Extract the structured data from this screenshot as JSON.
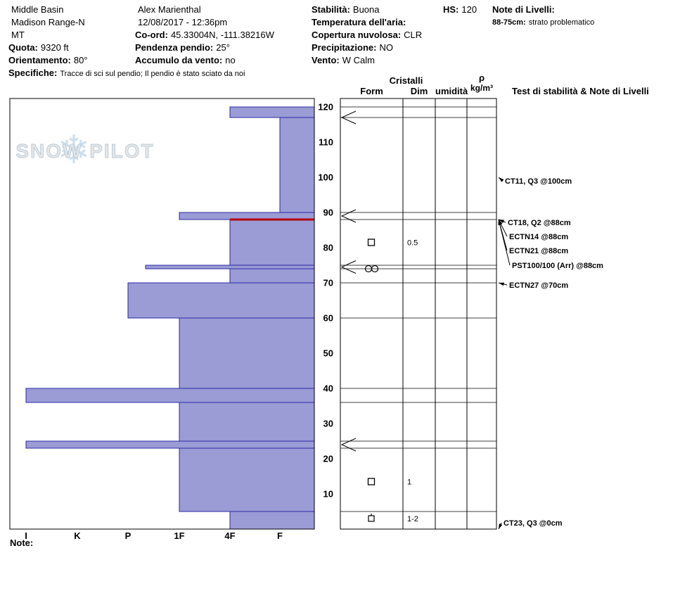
{
  "header": {
    "columns": [
      {
        "rows": [
          {
            "value": "Middle Basin"
          },
          {
            "value": "Madison Range-N"
          },
          {
            "value": "MT"
          },
          {
            "label": "Quota:",
            "value": "9320 ft"
          },
          {
            "label": "Orientamento:",
            "value": "80°"
          },
          {
            "label": "Specifiche:",
            "value": "Tracce di sci sul pendio;  Il pendio è stato sciato da noi",
            "small_value": true
          }
        ]
      },
      {
        "rows": [
          {
            "value": "Alex Marienthal"
          },
          {
            "value": "12/08/2017 - 12:36pm"
          },
          {
            "label": "Co-ord:",
            "value": "45.33004N, -111.38216W"
          },
          {
            "label": "Pendenza pendio:",
            "value": "25°"
          },
          {
            "label": "Accumulo da vento:",
            "value": "no"
          }
        ]
      },
      {
        "rows": [
          {
            "label": "Stabilità:",
            "value": "Buona"
          },
          {
            "label": "Temperatura dell'aria:",
            "value": ""
          },
          {
            "label": "Copertura nuvolosa:",
            "value": "CLR"
          },
          {
            "label": "Precipitazione:",
            "value": "NO"
          },
          {
            "label": "Vento:",
            "value": "W Calm"
          }
        ]
      },
      {
        "rows": [
          {
            "label": "HS:",
            "value": "120"
          }
        ]
      },
      {
        "rows": [
          {
            "label": "Note di Livelli:",
            "value": ""
          },
          {
            "label": "88-75cm:",
            "value": "strato problematico",
            "small": true
          }
        ]
      }
    ]
  },
  "table": {
    "group_header": "Cristalli",
    "form": "Form",
    "dim": "Dim",
    "humidity": "umidità",
    "rho_symbol": "ρ",
    "rho_unit": "kg/m³",
    "tests_header": "Test di stabilità & Note di Livelli"
  },
  "footer": {
    "note_label": "Note:"
  },
  "chart_data": {
    "type": "bar",
    "subtype": "snow-hardness-profile",
    "watermark": "SNOW PILOT",
    "hs_cm": 120,
    "depth_unit": "cm",
    "depth_ticks": [
      10,
      20,
      30,
      40,
      50,
      60,
      70,
      80,
      90,
      100,
      110,
      120
    ],
    "hardness_categories": [
      "I",
      "K",
      "P",
      "1F",
      "4F",
      "F"
    ],
    "layers": [
      {
        "top": 120,
        "bottom": 117,
        "hardness": "4F"
      },
      {
        "top": 117,
        "bottom": 90,
        "hardness": "F"
      },
      {
        "top": 90,
        "bottom": 88,
        "hardness": "1F"
      },
      {
        "top": 88,
        "bottom": 75,
        "hardness": "4F"
      },
      {
        "top": 75,
        "bottom": 74,
        "hardness": "1F+"
      },
      {
        "top": 74,
        "bottom": 70,
        "hardness": "4F"
      },
      {
        "top": 70,
        "bottom": 60,
        "hardness": "P"
      },
      {
        "top": 60,
        "bottom": 40,
        "hardness": "1F"
      },
      {
        "top": 40,
        "bottom": 36,
        "hardness": "I"
      },
      {
        "top": 36,
        "bottom": 25,
        "hardness": "1F"
      },
      {
        "top": 25,
        "bottom": 23,
        "hardness": "I"
      },
      {
        "top": 23,
        "bottom": 5,
        "hardness": "1F"
      },
      {
        "top": 5,
        "bottom": 0,
        "hardness": "4F"
      }
    ],
    "flagged_layer": {
      "depth_cm": 88,
      "note": "strato problematico"
    },
    "thin_layer_markers_cm": [
      117,
      89,
      74.5,
      24
    ],
    "crystals": [
      {
        "depth_cm": 81.5,
        "form": "facet-square",
        "dim": "0.5"
      },
      {
        "depth_cm": 74,
        "form": "double-circle",
        "dim": ""
      },
      {
        "depth_cm": 13.5,
        "form": "facet-square",
        "dim": "1"
      },
      {
        "depth_cm": 3,
        "form": "square-dot",
        "dim": "1-2"
      }
    ],
    "tests": [
      {
        "text": "CT11, Q3 @100cm",
        "depth_cm": 100,
        "label_cm": 99,
        "label_x": 718
      },
      {
        "text": "CT18, Q2 @88cm",
        "depth_cm": 88,
        "label_cm": 87.2,
        "label_x": 722
      },
      {
        "text": "ECTN14 @88cm",
        "depth_cm": 88,
        "label_cm": 83.2,
        "label_x": 724
      },
      {
        "text": "ECTN21 @88cm",
        "depth_cm": 88,
        "label_cm": 79.2,
        "label_x": 724
      },
      {
        "text": "PST100/100 (Arr) @88cm",
        "depth_cm": 88,
        "label_cm": 75,
        "label_x": 728
      },
      {
        "text": "ECTN27 @70cm",
        "depth_cm": 70,
        "label_cm": 69.4,
        "label_x": 724
      },
      {
        "text": "CT23, Q3 @0cm",
        "depth_cm": 0,
        "label_cm": 1.8,
        "label_x": 716
      }
    ],
    "colors": {
      "bar_fill": "#9b9bd5",
      "bar_border": "#2a2aa8",
      "flag": "#b40000"
    },
    "ylim": [
      0,
      122.4
    ],
    "grid": false,
    "legend": "none"
  }
}
